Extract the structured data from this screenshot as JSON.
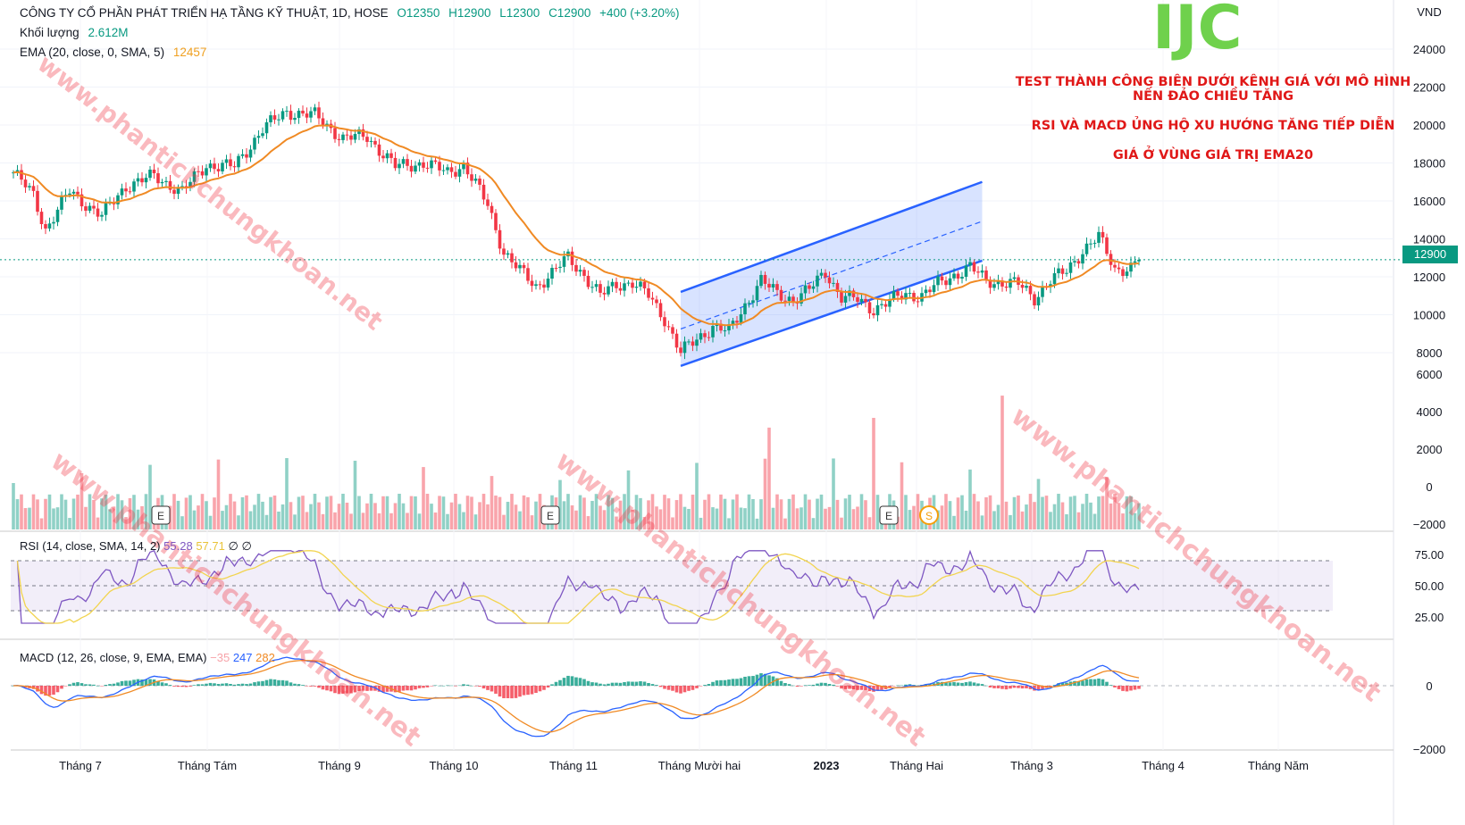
{
  "header": {
    "title": "CÔNG TY CỔ PHẦN PHÁT TRIỂN HẠ TẦNG KỸ THUẬT, 1D, HOSE",
    "ohlc": {
      "o": "O12350",
      "h": "H12900",
      "l": "L12300",
      "c": "C12900",
      "chg": "+400 (+3.20%)"
    },
    "volume_label": "Khối lượng",
    "volume_value": "2.612M",
    "ema_label": "EMA (20, close, 0, SMA, 5)",
    "ema_value": "12457"
  },
  "ticker": "IJC",
  "notes": [
    "TEST THÀNH CÔNG BIÊN DƯỚI KÊNH GIÁ VỚI MÔ HÌNH NẾN ĐẢO CHIỀU TĂNG",
    "RSI VÀ MACD ỦNG HỘ XU HƯỚNG TĂNG TIẾP DIỄN",
    "GIÁ Ở VÙNG GIÁ TRỊ EMA20"
  ],
  "currency": "VND",
  "last_price_tag": "12900",
  "rsi": {
    "label": "RSI (14, close, SMA, 14, 2)",
    "v1": "55.28",
    "v2": "57.71",
    "v3": "∅",
    "v4": "∅"
  },
  "macd": {
    "label": "MACD (12, 26, close, 9, EMA, EMA)",
    "hist": "−35",
    "macd": "247",
    "signal": "282"
  },
  "watermarks": [
    "www.phantichchungkhoan.net"
  ],
  "colors": {
    "up": "#089981",
    "down": "#f23645",
    "ema": "#f08a24",
    "channel": "#2962ff",
    "rsi": "#7e57c2"
  },
  "chart_data": {
    "type": "candlestick",
    "x_labels": [
      "Tháng 7",
      "Tháng Tám",
      "Tháng 9",
      "Tháng 10",
      "Tháng 11",
      "Tháng Mười hai",
      "2023",
      "Tháng Hai",
      "Tháng 3",
      "Tháng 4",
      "Tháng Năm"
    ],
    "price_axis": {
      "ticks": [
        8000,
        10000,
        12000,
        14000,
        16000,
        18000,
        20000,
        22000,
        24000
      ],
      "range": [
        6800,
        24500
      ]
    },
    "volume_axis_ticks": [
      "−2000",
      "0",
      "2000",
      "4000",
      "6000"
    ],
    "rsi_axis_ticks": [
      "25.00",
      "50.00",
      "75.00"
    ],
    "macd_axis_ticks": [
      "0",
      "−2000"
    ],
    "close_waypoints": [
      [
        0,
        17500
      ],
      [
        5,
        16300
      ],
      [
        8,
        14500
      ],
      [
        14,
        16500
      ],
      [
        22,
        15200
      ],
      [
        28,
        16800
      ],
      [
        35,
        17300
      ],
      [
        42,
        16500
      ],
      [
        48,
        17900
      ],
      [
        55,
        17800
      ],
      [
        62,
        19800
      ],
      [
        68,
        20700
      ],
      [
        75,
        20500
      ],
      [
        82,
        19300
      ],
      [
        88,
        19400
      ],
      [
        95,
        17800
      ],
      [
        102,
        18000
      ],
      [
        108,
        17500
      ],
      [
        112,
        17900
      ],
      [
        118,
        15800
      ],
      [
        122,
        13300
      ],
      [
        126,
        12300
      ],
      [
        130,
        11500
      ],
      [
        134,
        12200
      ],
      [
        138,
        13000
      ],
      [
        142,
        12100
      ],
      [
        146,
        11000
      ],
      [
        150,
        11600
      ],
      [
        154,
        11700
      ],
      [
        158,
        11000
      ],
      [
        162,
        9800
      ],
      [
        166,
        8000
      ],
      [
        170,
        8700
      ],
      [
        174,
        9400
      ],
      [
        178,
        9100
      ],
      [
        182,
        10500
      ],
      [
        186,
        11800
      ],
      [
        190,
        11100
      ],
      [
        194,
        10800
      ],
      [
        198,
        11300
      ],
      [
        202,
        12300
      ],
      [
        206,
        10900
      ],
      [
        210,
        10800
      ],
      [
        214,
        10300
      ],
      [
        218,
        10700
      ],
      [
        222,
        11100
      ],
      [
        226,
        11000
      ],
      [
        230,
        11600
      ],
      [
        234,
        12100
      ],
      [
        238,
        12500
      ],
      [
        242,
        11800
      ],
      [
        246,
        11700
      ],
      [
        250,
        11600
      ],
      [
        254,
        10900
      ],
      [
        258,
        11800
      ],
      [
        262,
        12300
      ],
      [
        266,
        13400
      ],
      [
        270,
        14100
      ],
      [
        274,
        12400
      ],
      [
        278,
        12500
      ],
      [
        280,
        12900
      ]
    ],
    "ema20_last": 12457,
    "channel": {
      "lower": [
        [
          166,
          7300
        ],
        [
          241,
          12850
        ]
      ],
      "upper": [
        [
          166,
          11200
        ],
        [
          241,
          17000
        ]
      ],
      "mid": [
        [
          166,
          9250
        ],
        [
          241,
          14925
        ]
      ]
    },
    "events": [
      "E",
      "E",
      "E",
      "S"
    ]
  }
}
